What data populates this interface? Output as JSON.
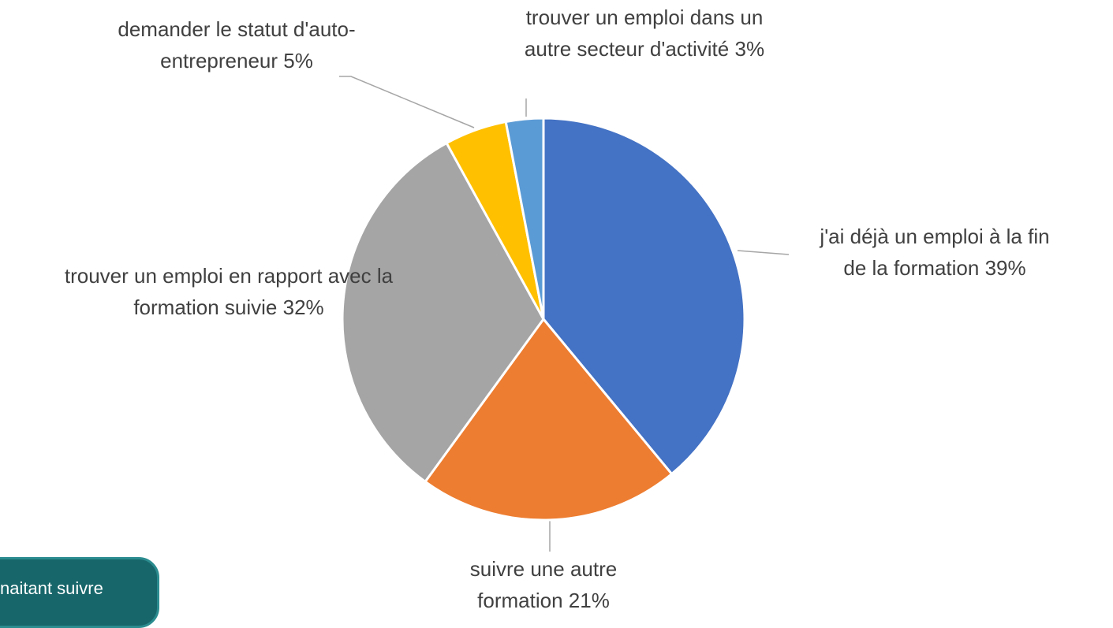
{
  "chart_data": {
    "type": "pie",
    "categories": [
      "j'ai déjà un emploi à la fin de la formation",
      "suivre une autre formation",
      "trouver un emploi en rapport avec la formation suivie",
      "demander le statut d'auto-entrepreneur",
      "trouver un emploi dans un autre secteur d'activité"
    ],
    "values": [
      39,
      21,
      32,
      5,
      3
    ],
    "value_labels": [
      "39%",
      "21%",
      "32%",
      "5%",
      "3%"
    ],
    "colors": [
      "#4472c4",
      "#ed7d31",
      "#a5a5a5",
      "#ffc000",
      "#5b9bd5"
    ]
  },
  "banner": {
    "text": "naitant suivre"
  }
}
